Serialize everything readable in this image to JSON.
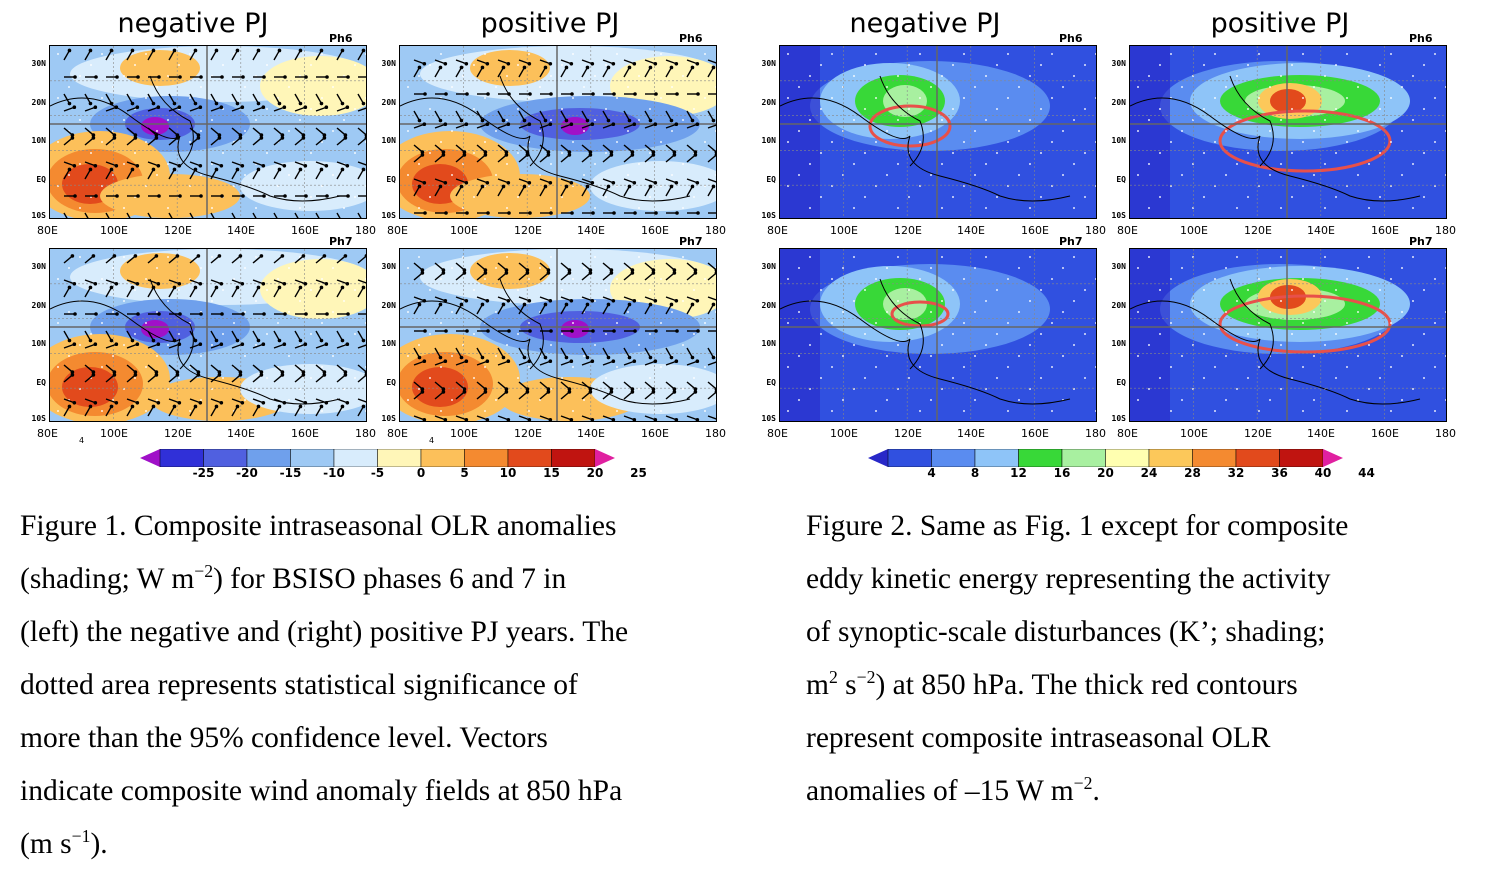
{
  "fig1": {
    "titles": [
      "negative PJ",
      "positive PJ"
    ],
    "phases": [
      "Ph6",
      "Ph7"
    ],
    "lat_labels": [
      "30N",
      "20N",
      "10N",
      "EQ",
      "10S"
    ],
    "lon_labels": [
      "80E",
      "100E",
      "120E",
      "140E",
      "160E",
      "180"
    ],
    "vector_ref": "4",
    "colorbar_labels": [
      "-25",
      "-20",
      "-15",
      "-10",
      "-5",
      "0",
      "5",
      "10",
      "15",
      "20",
      "25"
    ],
    "colors": [
      "#a010c8",
      "#3030d8",
      "#5060e0",
      "#6fa0ec",
      "#9ec9f4",
      "#d8ecfc",
      "#fff6b8",
      "#fcc05a",
      "#f48a30",
      "#e24a1c",
      "#c01410",
      "#e020a0"
    ]
  },
  "fig2": {
    "titles": [
      "negative PJ",
      "positive PJ"
    ],
    "phases": [
      "Ph6",
      "Ph7"
    ],
    "lat_labels": [
      "30N",
      "20N",
      "10N",
      "EQ",
      "10S"
    ],
    "lon_labels": [
      "80E",
      "100E",
      "120E",
      "140E",
      "160E",
      "180"
    ],
    "colorbar_labels": [
      "4",
      "8",
      "12",
      "16",
      "20",
      "24",
      "28",
      "32",
      "36",
      "40",
      "44"
    ],
    "colors": [
      "#2828c8",
      "#3050e0",
      "#5a8cf0",
      "#8ec4f8",
      "#38d838",
      "#a8f0a0",
      "#ffffb0",
      "#fcc85a",
      "#f48a30",
      "#e24a1c",
      "#c01410",
      "#e020a0"
    ]
  },
  "caption1": {
    "l1": "Figure 1. Composite intraseasonal OLR anomalies",
    "l2a": "(shading; W m",
    "l2sup": "−2",
    "l2b": ") for BSISO phases 6 and 7 in",
    "l3": "(left) the negative and (right) positive PJ years. The",
    "l4": "dotted area represents statistical significance of",
    "l5": "more than the 95% confidence level. Vectors",
    "l6": "indicate composite wind anomaly fields at 850 hPa",
    "l7a": "(m s",
    "l7sup": "−1",
    "l7b": ")."
  },
  "caption2": {
    "l1": "Figure 2. Same as Fig. 1 except for composite",
    "l2": "eddy kinetic energy representing the activity",
    "l3": "of synoptic-scale disturbances (K’; shading;",
    "l4a": "m",
    "l4sup1": "2",
    "l4b": " s",
    "l4sup2": "−2",
    "l4c": ") at 850 hPa. The thick red contours",
    "l5": "represent composite intraseasonal OLR",
    "l6a": "anomalies of –15 W m",
    "l6sup": "−2",
    "l6b": "."
  }
}
